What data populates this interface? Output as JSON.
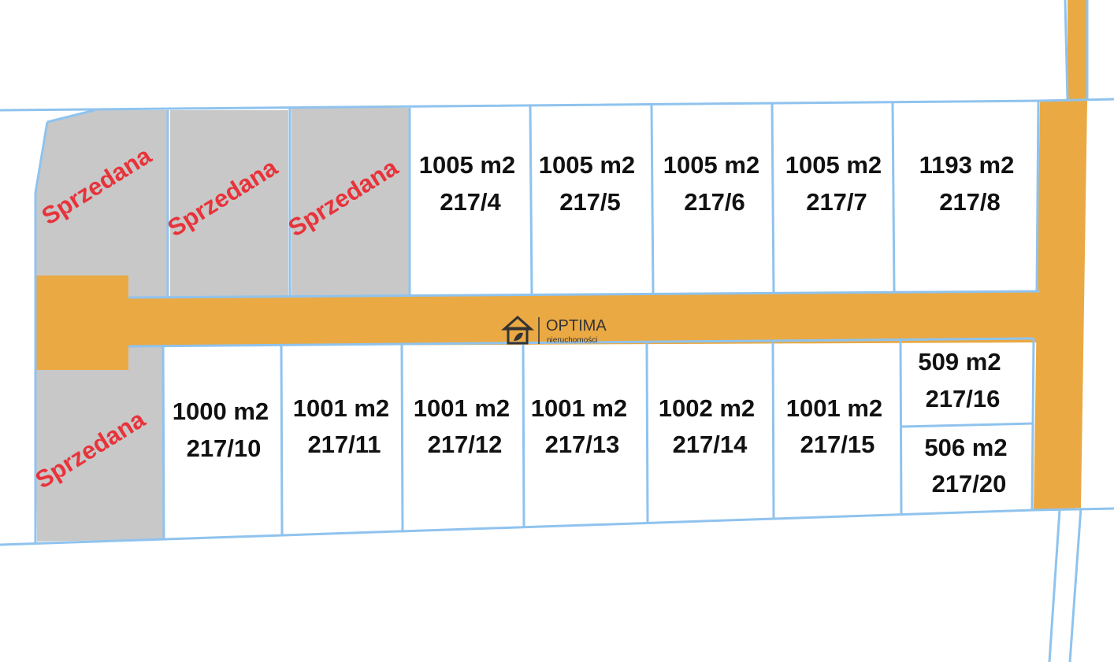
{
  "sold": [
    "Sprzedana",
    "Sprzedana",
    "Sprzedana",
    "Sprzedana"
  ],
  "plots_top": [
    {
      "area": "1005 m2",
      "number": "217/4"
    },
    {
      "area": "1005 m2",
      "number": "217/5"
    },
    {
      "area": "1005 m2",
      "number": "217/6"
    },
    {
      "area": "1005 m2",
      "number": "217/7"
    },
    {
      "area": "1193 m2",
      "number": "217/8"
    }
  ],
  "plots_bottom": [
    {
      "area": "1000 m2",
      "number": "217/10"
    },
    {
      "area": "1001 m2",
      "number": "217/11"
    },
    {
      "area": "1001 m2",
      "number": "217/12"
    },
    {
      "area": "1001 m2",
      "number": "217/13"
    },
    {
      "area": "1002 m2",
      "number": "217/14"
    },
    {
      "area": "1001 m2",
      "number": "217/15"
    },
    {
      "area": "509 m2",
      "number": "217/16"
    },
    {
      "area": "506 m2",
      "number": "217/20"
    }
  ],
  "logo": {
    "name": "OPTIMA",
    "tagline": "nieruchomości"
  }
}
